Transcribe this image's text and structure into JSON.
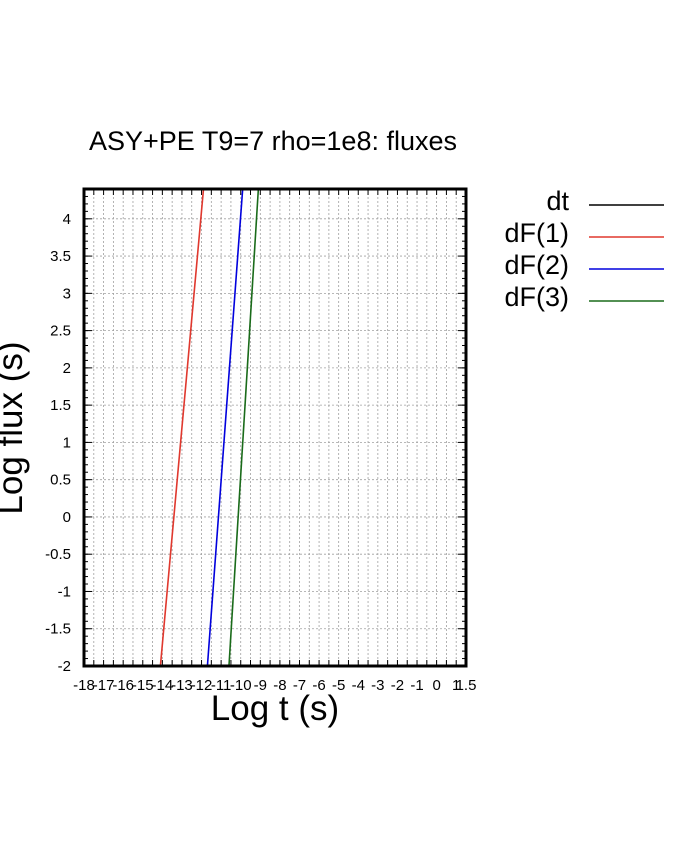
{
  "chart_data": {
    "type": "line",
    "title": "ASY+PE T9=7 rho=1e8: fluxes",
    "xlabel": "Log t (s)",
    "ylabel": "Log flux (s)",
    "xlim": [
      -18,
      1.5
    ],
    "ylim": [
      -2,
      4.4
    ],
    "grid": true,
    "legend_position": "right, outside plot",
    "x_ticks": [
      "-18",
      "-17.5",
      "-17",
      "-16.5",
      "-16",
      "-15.5",
      "-15",
      "-14.5",
      "-14",
      "-13.5",
      "-13",
      "-12.5",
      "-12",
      "-11.5",
      "-11",
      "-10.5",
      "-10",
      "-9.5",
      "-9",
      "-8.5",
      "-8",
      "-7.5",
      "-7",
      "-6.5",
      "-6",
      "-5.5",
      "-5",
      "-4.5",
      "-4",
      "-3.5",
      "-3",
      "-2.5",
      "-2",
      "-1.5",
      "-1",
      "-0.5",
      "0",
      "0.5",
      "1",
      "1.5"
    ],
    "x_ticks_display": [
      "-18",
      "-17",
      "-16",
      "-15",
      "-14",
      "-13",
      "-12",
      "-11",
      "-10",
      "-9",
      "-8",
      "-7",
      "-6",
      "-5",
      "-4",
      "-3",
      "-2",
      "-1",
      "0",
      "1",
      "1.5"
    ],
    "y_ticks": [
      "4",
      "3.5",
      "3",
      "2.5",
      "2",
      "1.5",
      "1",
      "0.5",
      "0",
      "-0.5",
      "-1",
      "-1.5",
      "-2"
    ],
    "series": [
      {
        "name": "dt",
        "color": "#000000",
        "x": [],
        "y": []
      },
      {
        "name": "dF(1)",
        "color": "#e0382e",
        "x": [
          -14.1,
          -11.9
        ],
        "y": [
          -2,
          4.4
        ]
      },
      {
        "name": "dF(2)",
        "color": "#0000dd",
        "x": [
          -11.7,
          -9.9
        ],
        "y": [
          -2,
          4.4
        ]
      },
      {
        "name": "dF(3)",
        "color": "#1a6b1a",
        "x": [
          -10.6,
          -9.1
        ],
        "y": [
          -2,
          4.4
        ]
      }
    ]
  }
}
